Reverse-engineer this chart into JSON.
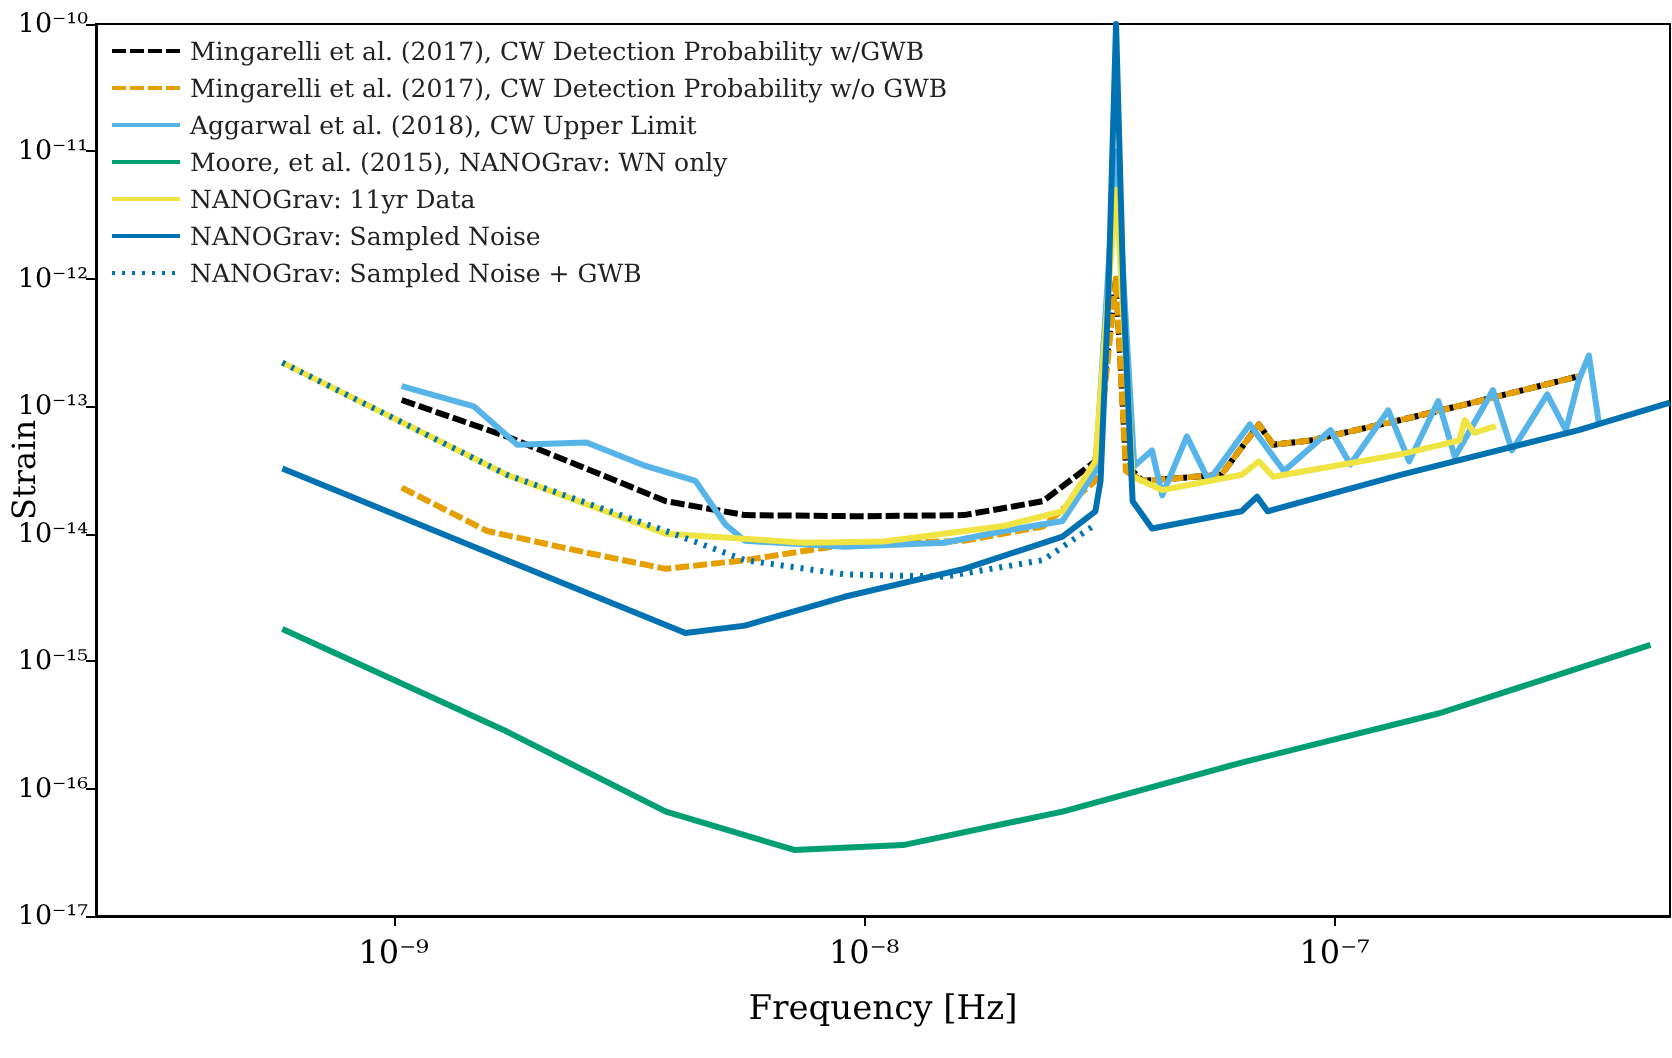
{
  "chart_data": {
    "type": "line",
    "xlabel": "Frequency [Hz]",
    "ylabel": "Strain",
    "log": "xy",
    "grid": false,
    "legend": "top left",
    "marker": "none",
    "xlim": [
      2.33e-10,
      5.16e-07
    ],
    "ylim": [
      1e-17,
      1e-10
    ],
    "xticks": [
      {
        "value": 1e-09,
        "label": "10⁻⁹"
      },
      {
        "value": 1e-08,
        "label": "10⁻⁸"
      },
      {
        "value": 1e-07,
        "label": "10⁻⁷"
      }
    ],
    "yticks": [
      {
        "value": 1e-17,
        "label": "10⁻¹⁷"
      },
      {
        "value": 1e-16,
        "label": "10⁻¹⁶"
      },
      {
        "value": 1e-15,
        "label": "10⁻¹⁵"
      },
      {
        "value": 1e-14,
        "label": "10⁻¹⁴"
      },
      {
        "value": 1e-13,
        "label": "10⁻¹³"
      },
      {
        "value": 1e-12,
        "label": "10⁻¹²"
      },
      {
        "value": 1e-11,
        "label": "10⁻¹¹"
      },
      {
        "value": 1e-10,
        "label": "10⁻¹⁰"
      }
    ],
    "series": [
      {
        "name": "Mingarelli et al. (2017), CW Detection Probability w/GWB",
        "color": "#000000",
        "line_style": "dashed",
        "x": [
          1.04e-09,
          1.74e-09,
          2.83e-09,
          3.79e-09,
          5.58e-09,
          1e-08,
          1.63e-08,
          2.4e-08,
          3.1e-08,
          3.43e-08,
          3.6e-08,
          3.9e-08,
          5.74e-08,
          6.9e-08,
          7.4e-08,
          8.9e-08,
          1.38e-07,
          2.03e-07,
          3.3e-07
        ],
        "values": [
          1.12e-13,
          5.8e-14,
          2.8e-14,
          1.8e-14,
          1.4e-14,
          1.37e-14,
          1.4e-14,
          1.8e-14,
          3.7e-14,
          1e-12,
          3.5e-14,
          2.6e-14,
          2.9e-14,
          7.2e-14,
          5e-14,
          5.4e-14,
          7.8e-14,
          1.1e-13,
          1.72e-13
        ]
      },
      {
        "name": "Mingarelli et al. (2017), CW Detection Probability w/o GWB",
        "color": "#e69f00",
        "line_style": "dashed",
        "x": [
          1.04e-09,
          1.58e-09,
          2.57e-09,
          3.79e-09,
          5.58e-09,
          9.08e-09,
          1.63e-08,
          2.4e-08,
          3.1e-08,
          3.43e-08,
          3.6e-08,
          3.9e-08,
          5.74e-08,
          6.9e-08,
          7.4e-08,
          8.9e-08,
          1.38e-07,
          2.03e-07,
          3.3e-07
        ],
        "values": [
          2.3e-14,
          1.05e-14,
          7.1e-15,
          5.3e-15,
          6.2e-15,
          8.2e-15,
          8.8e-15,
          1.14e-14,
          2.6e-14,
          1e-12,
          3.1e-14,
          2.6e-14,
          2.9e-14,
          7.2e-14,
          5e-14,
          5.4e-14,
          7.8e-14,
          1.1e-13,
          1.72e-13
        ]
      },
      {
        "name": "Aggarwal et al. (2018), CW Upper Limit",
        "color": "#56b4e9",
        "line_style": "solid",
        "x": [
          1.04e-09,
          1.48e-09,
          1.83e-09,
          2.57e-09,
          3.43e-09,
          4.38e-09,
          5.07e-09,
          5.58e-09,
          9.08e-09,
          1.48e-08,
          1.98e-08,
          2.64e-08,
          3.1e-08,
          3.43e-08,
          3.75e-08,
          4.09e-08,
          4.3e-08,
          4.85e-08,
          5.4e-08,
          6.6e-08,
          7.8e-08,
          9.8e-08,
          1.08e-07,
          1.3e-07,
          1.44e-07,
          1.66e-07,
          1.8e-07,
          2.17e-07,
          2.38e-07,
          2.83e-07,
          3.1e-07,
          3.3e-07,
          3.47e-07,
          3.65e-07
        ],
        "values": [
          1.44e-13,
          1e-13,
          5e-14,
          5.2e-14,
          3.4e-14,
          2.6e-14,
          1.18e-14,
          8.8e-15,
          7.9e-15,
          8.5e-15,
          1.05e-14,
          1.26e-14,
          3.1e-14,
          1e-11,
          3.4e-14,
          4.5e-14,
          2e-14,
          5.8e-14,
          2.6e-14,
          7.2e-14,
          3.1e-14,
          6.5e-14,
          3.5e-14,
          9.3e-14,
          3.7e-14,
          1.1e-13,
          4e-14,
          1.34e-13,
          4.5e-14,
          1.24e-13,
          6.5e-14,
          1.6e-13,
          2.5e-13,
          7e-14
        ]
      },
      {
        "name": "Moore, et al. (2015), NANOGrav: WN only",
        "color": "#009e73",
        "line_style": "solid",
        "x": [
          5.8e-10,
          1.74e-09,
          3.79e-09,
          7.1e-09,
          1.21e-08,
          2.64e-08,
          6.34e-08,
          1.67e-07,
          4.69e-07
        ],
        "values": [
          1.79e-15,
          2.8e-16,
          6.6e-17,
          3.3e-17,
          3.6e-17,
          6.6e-17,
          1.6e-16,
          3.9e-16,
          1.34e-15
        ]
      },
      {
        "name": "NANOGrav: 11yr Data",
        "color": "#f0e442",
        "line_style": "solid",
        "x": [
          5.8e-10,
          1.74e-09,
          3.79e-09,
          7.46e-09,
          1.1e-08,
          1.98e-08,
          2.64e-08,
          3.1e-08,
          3.43e-08,
          3.72e-08,
          4.3e-08,
          6.34e-08,
          6.9e-08,
          7.4e-08,
          1.38e-07,
          1.84e-07,
          1.89e-07,
          1.98e-07,
          2.2e-07
        ],
        "values": [
          2.2e-13,
          2.9e-14,
          1e-14,
          8.5e-15,
          8.7e-15,
          1.15e-14,
          1.5e-14,
          3.7e-14,
          5e-12,
          2.8e-14,
          2.2e-14,
          2.9e-14,
          3.7e-14,
          2.8e-14,
          4.2e-14,
          5.4e-14,
          7.8e-14,
          6.2e-14,
          7e-14
        ]
      },
      {
        "name": "NANOGrav: Sampled Noise",
        "color": "#0072b2",
        "line_style": "solid",
        "x": [
          5.8e-10,
          1.74e-09,
          4.17e-09,
          5.58e-09,
          9.08e-09,
          1.63e-08,
          2.64e-08,
          3.1e-08,
          3.18e-08,
          3.3e-08,
          3.43e-08,
          3.56e-08,
          3.72e-08,
          4.09e-08,
          6.34e-08,
          6.84e-08,
          7.2e-08,
          1.38e-07,
          3.3e-07,
          5.16e-07
        ],
        "values": [
          3.25e-14,
          6.2e-15,
          1.66e-15,
          1.9e-15,
          3.2e-15,
          5.3e-15,
          9.5e-15,
          1.5e-14,
          2.6e-14,
          6.8e-13,
          1e-10,
          6.8e-13,
          1.8e-14,
          1.1e-14,
          1.5e-14,
          1.95e-14,
          1.5e-14,
          2.9e-14,
          6.5e-14,
          1.07e-13
        ]
      },
      {
        "name": "NANOGrav: Sampled Noise + GWB",
        "color": "#0072b2",
        "line_style": "dotted",
        "x": [
          5.8e-10,
          1.74e-09,
          3.79e-09,
          5.58e-09,
          9.08e-09,
          1.48e-08,
          2.4e-08,
          3.1e-08
        ],
        "values": [
          2.2e-13,
          2.9e-14,
          1.05e-14,
          6.2e-15,
          4.8e-15,
          4.6e-15,
          6.2e-15,
          1.18e-14
        ]
      }
    ]
  }
}
